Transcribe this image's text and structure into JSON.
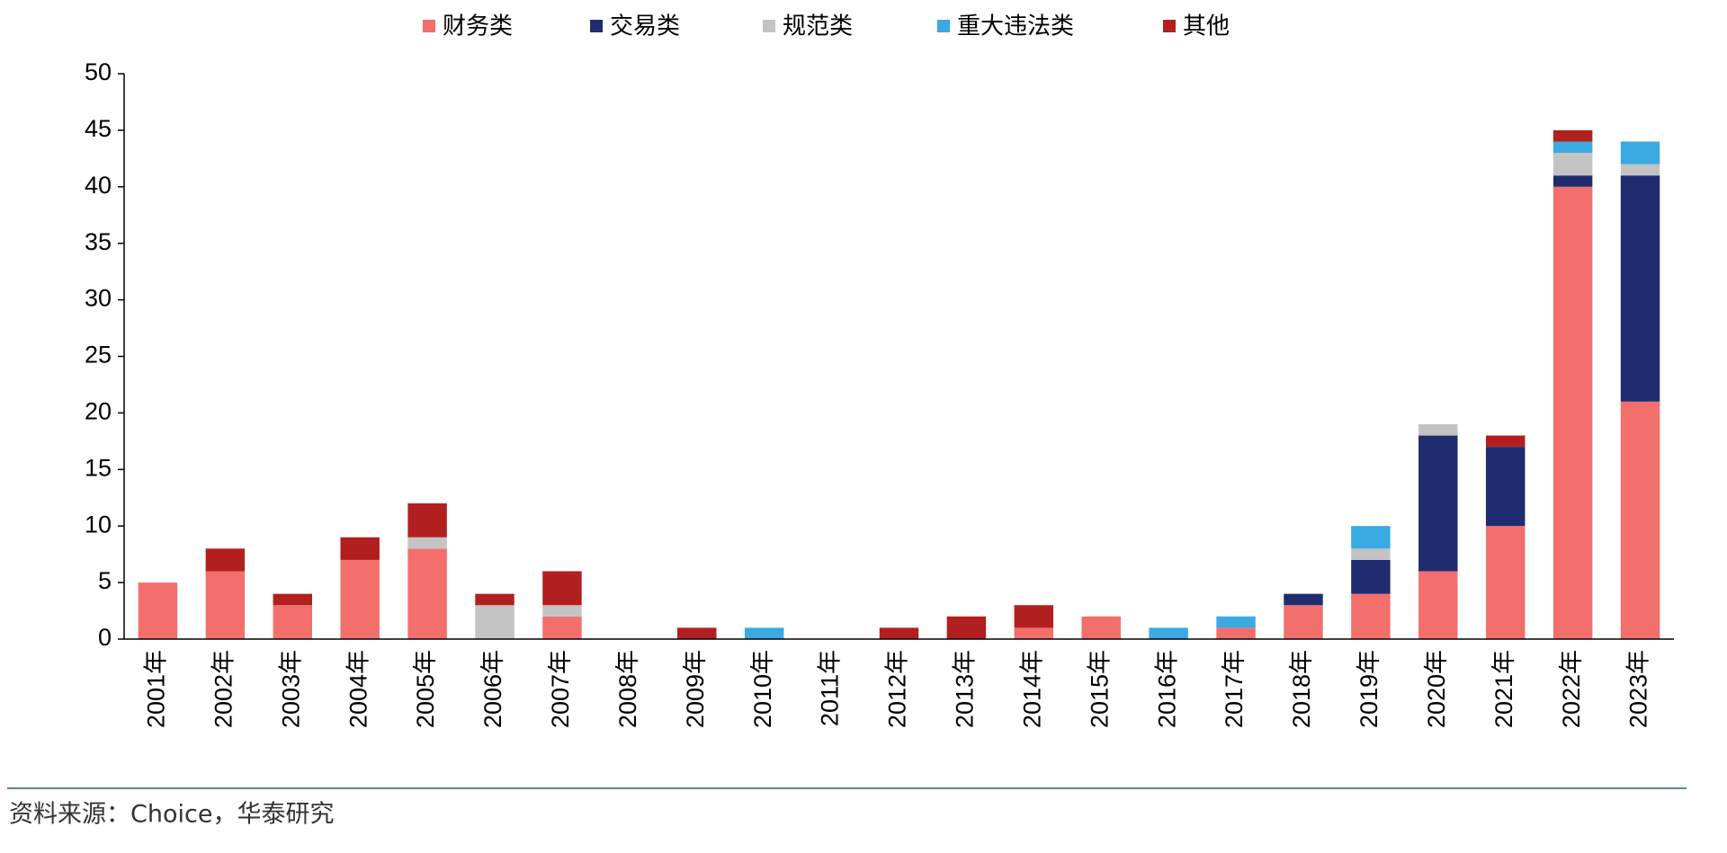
{
  "chart_data": {
    "type": "stacked_bar",
    "categories": [
      "2001年",
      "2002年",
      "2003年",
      "2004年",
      "2005年",
      "2006年",
      "2007年",
      "2008年",
      "2009年",
      "2010年",
      "2011年",
      "2012年",
      "2013年",
      "2014年",
      "2015年",
      "2016年",
      "2017年",
      "2018年",
      "2019年",
      "2020年",
      "2021年",
      "2022年",
      "2023年"
    ],
    "series": [
      {
        "name": "财务类",
        "color": "#f26f6c",
        "values": [
          5,
          6,
          3,
          7,
          8,
          0,
          2,
          0,
          0,
          0,
          0,
          0,
          0,
          1,
          2,
          0,
          1,
          3,
          4,
          6,
          10,
          40,
          21
        ]
      },
      {
        "name": "交易类",
        "color": "#1f2c6f",
        "values": [
          0,
          0,
          0,
          0,
          0,
          0,
          0,
          0,
          0,
          0,
          0,
          0,
          0,
          0,
          0,
          0,
          0,
          1,
          3,
          12,
          7,
          1,
          20
        ]
      },
      {
        "name": "规范类",
        "color": "#c3c3c3",
        "values": [
          0,
          0,
          0,
          0,
          1,
          3,
          1,
          0,
          0,
          0,
          0,
          0,
          0,
          0,
          0,
          0,
          0,
          0,
          1,
          1,
          0,
          2,
          1
        ]
      },
      {
        "name": "重大违法类",
        "color": "#3ba9e2",
        "values": [
          0,
          0,
          0,
          0,
          0,
          0,
          0,
          0,
          0,
          1,
          0,
          0,
          0,
          0,
          0,
          1,
          1,
          0,
          2,
          0,
          0,
          1,
          2
        ]
      },
      {
        "name": "其他",
        "color": "#b21f1f",
        "values": [
          0,
          2,
          1,
          2,
          3,
          1,
          3,
          0,
          1,
          0,
          0,
          1,
          2,
          2,
          0,
          0,
          0,
          0,
          0,
          0,
          1,
          1,
          0
        ]
      }
    ],
    "ylim": [
      0,
      50
    ],
    "yticks": [
      0,
      5,
      10,
      15,
      20,
      25,
      30,
      35,
      40,
      45,
      50
    ],
    "legend": "top",
    "source": "资料来源：Choice，华泰研究"
  }
}
